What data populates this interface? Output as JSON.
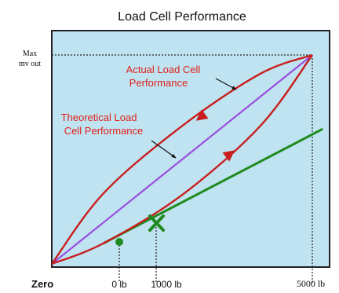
{
  "chart_data": {
    "type": "line",
    "title": "Load Cell Performance",
    "y_tick_label": [
      "Max",
      "mv out"
    ],
    "x_ticks": {
      "zero": "Zero",
      "tick_0": "0 lb",
      "tick_1000": "1000 lb",
      "tick_5000": "5000 lb"
    },
    "x_unit": "lb",
    "xlim": [
      0,
      5000
    ],
    "ylim": [
      0,
      1
    ],
    "series": [
      {
        "key": "theoretical",
        "x": [
          0,
          5000
        ],
        "y": [
          0,
          1
        ]
      },
      {
        "key": "actual_upper",
        "x": [
          0,
          1000,
          2500,
          4000,
          5000
        ],
        "y": [
          0,
          0.34,
          0.66,
          0.91,
          1
        ]
      },
      {
        "key": "actual_lower",
        "x": [
          0,
          1000,
          2500,
          4000,
          5000
        ],
        "y": [
          0,
          0.1,
          0.33,
          0.66,
          1
        ]
      },
      {
        "key": "tangent",
        "x": [
          1000,
          5000
        ],
        "y": [
          0.1,
          0.62
        ]
      }
    ],
    "markers": [
      {
        "type": "dot",
        "x": 660,
        "y": 0.08
      },
      {
        "type": "x",
        "x": 1000,
        "y": 0.1
      }
    ],
    "annotations": [
      {
        "key": "actual",
        "lines": [
          "Actual Load Cell",
          "Performance"
        ]
      },
      {
        "key": "theoretical",
        "lines": [
          "Theoretical Load",
          "Cell Performance"
        ]
      }
    ]
  },
  "colors": {
    "plot_bg": "#bfe3f0",
    "theoretical": "#9a4ee0",
    "actual": "#c81e1e",
    "tangent": "#1f8a1f",
    "label_red": "#e0201c",
    "marker_green": "#1f8a1f"
  }
}
